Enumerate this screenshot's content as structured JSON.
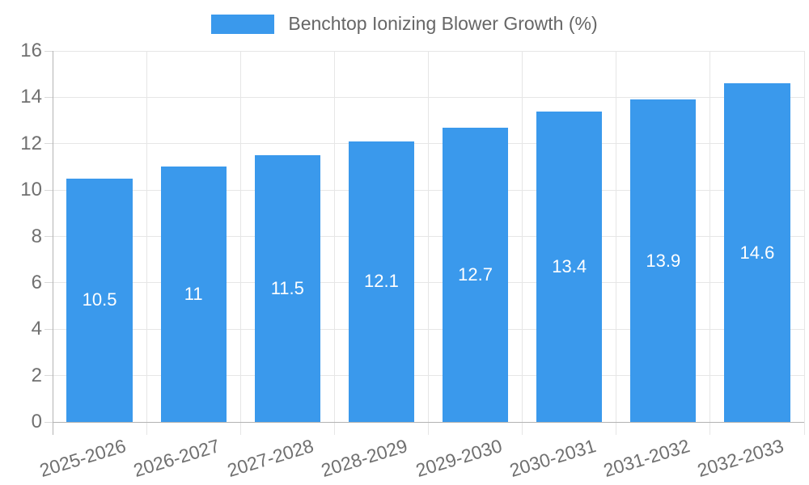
{
  "legend": {
    "label": "Benchtop Ionizing Blower Growth (%)"
  },
  "chart_data": {
    "type": "bar",
    "title": "Benchtop Ionizing Blower Growth (%)",
    "categories": [
      "2025-2026",
      "2026-2027",
      "2027-2028",
      "2028-2029",
      "2029-2030",
      "2030-2031",
      "2031-2032",
      "2032-2033"
    ],
    "values": [
      10.5,
      11,
      11.5,
      12.1,
      12.7,
      13.4,
      13.9,
      14.6
    ],
    "value_labels": [
      "10.5",
      "11",
      "11.5",
      "12.1",
      "12.7",
      "13.4",
      "13.9",
      "14.6"
    ],
    "xlabel": "",
    "ylabel": "",
    "ylim": [
      0,
      16
    ],
    "yticks": [
      0,
      2,
      4,
      6,
      8,
      10,
      12,
      14,
      16
    ],
    "grid": true,
    "legend_position": "top",
    "value_label_position": "center-of-bar",
    "x_tick_rotation_deg": -17,
    "colors": {
      "bar": "#3a99ec",
      "grid": "#e6e6e6",
      "axis": "#b3b3b3",
      "tick": "#d9d9d9",
      "tick_text": "#707070",
      "legend_text": "#666666",
      "bar_label": "#ffffff",
      "background": "#ffffff"
    }
  }
}
